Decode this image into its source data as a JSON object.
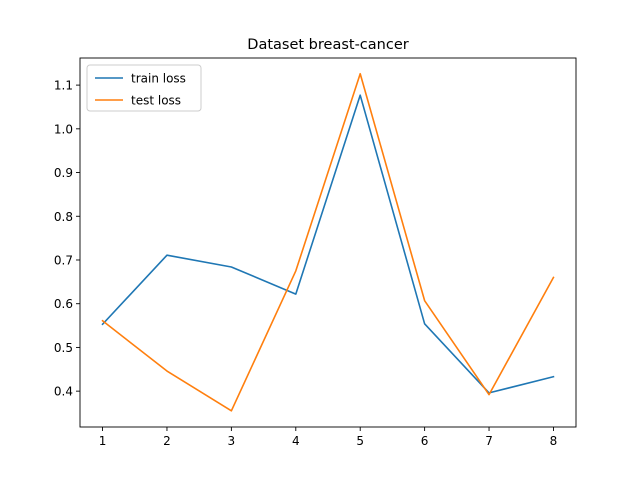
{
  "chart_data": {
    "type": "line",
    "title": "Dataset breast-cancer",
    "xlabel": "",
    "ylabel": "",
    "x": [
      1,
      2,
      3,
      4,
      5,
      6,
      7,
      8
    ],
    "xticks": [
      1,
      2,
      3,
      4,
      5,
      6,
      7,
      8
    ],
    "yticks": [
      0.4,
      0.5,
      0.6,
      0.7,
      0.8,
      0.9,
      1.0,
      1.1
    ],
    "xlim": [
      0.65,
      8.35
    ],
    "ylim": [
      0.318,
      1.162
    ],
    "grid": false,
    "legend_position": "upper-left",
    "series": [
      {
        "name": "train loss",
        "color": "#1f77b4",
        "values": [
          0.553,
          0.711,
          0.684,
          0.622,
          1.077,
          0.554,
          0.396,
          0.433
        ]
      },
      {
        "name": "test loss",
        "color": "#ff7f0e",
        "values": [
          0.561,
          0.446,
          0.355,
          0.675,
          1.126,
          0.607,
          0.392,
          0.66
        ]
      }
    ]
  }
}
